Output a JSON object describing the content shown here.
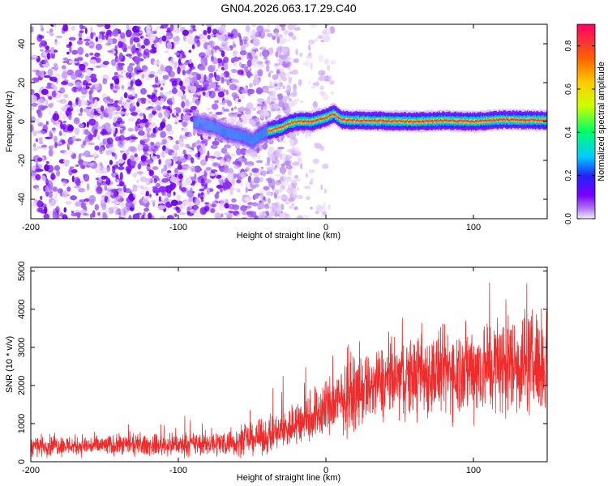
{
  "title": "GN04.2026.063.17.29.C40",
  "chart_data": [
    {
      "type": "heatmap",
      "name": "spectrogram",
      "xlabel": "Height of straight line (km)",
      "ylabel": "Frequency (Hz)",
      "xlim": [
        -200,
        150
      ],
      "ylim": [
        -50,
        50
      ],
      "x_ticks": [
        -200,
        -100,
        0,
        100
      ],
      "y_ticks": [
        -40,
        -20,
        0,
        20,
        40
      ],
      "colorbar": {
        "label": "Normalized spectral amplitude",
        "range": [
          0,
          0.9
        ],
        "ticks": [
          0.0,
          0.2,
          0.4,
          0.6,
          0.8
        ],
        "tick_labels": [
          "0.0",
          "0.2",
          "0.4",
          "0.6",
          "0.8"
        ],
        "colors": [
          "#f4ecfa",
          "#b07cf0",
          "#7a00ff",
          "#2222ff",
          "#00ccff",
          "#00ff66",
          "#ccff00",
          "#ffcc00",
          "#ff6600",
          "#ff0066"
        ]
      },
      "signal_track": {
        "x": [
          -90,
          -75,
          -70,
          -65,
          -60,
          -55,
          -50,
          -45,
          -40,
          -35,
          -30,
          -25,
          -20,
          -15,
          -10,
          -5,
          0,
          5,
          10,
          20,
          40,
          60,
          80,
          100,
          120,
          150
        ],
        "frequency": [
          0,
          -3,
          -5,
          -6,
          -7,
          -8,
          -10,
          -7,
          -5,
          -4,
          -3,
          -1,
          0,
          0,
          0,
          1,
          2,
          4,
          1,
          0.5,
          0.3,
          0,
          0.5,
          0,
          1,
          0.5
        ]
      },
      "noise_region_x": [
        -200,
        -20
      ]
    },
    {
      "type": "line",
      "name": "snr",
      "xlabel": "Height of straight line (km)",
      "ylabel": "SNR (10 * v/v)",
      "xlim": [
        -200,
        150
      ],
      "ylim": [
        0,
        5100
      ],
      "x_ticks": [
        -200,
        -100,
        0,
        100
      ],
      "y_ticks": [
        0,
        1000,
        2000,
        3000,
        4000,
        5000
      ],
      "color": "#ef2b2b",
      "envelope": {
        "x": [
          -200,
          -180,
          -160,
          -140,
          -120,
          -100,
          -80,
          -60,
          -50,
          -40,
          -30,
          -20,
          -10,
          0,
          10,
          20,
          30,
          40,
          50,
          60,
          70,
          80,
          90,
          100,
          110,
          120,
          130,
          140,
          150
        ],
        "mean": [
          420,
          430,
          420,
          430,
          430,
          440,
          470,
          520,
          600,
          650,
          800,
          1000,
          1200,
          1400,
          1600,
          1800,
          1950,
          2100,
          2200,
          2250,
          2300,
          2350,
          2400,
          2450,
          2500,
          2550,
          2600,
          2600,
          2600
        ],
        "spread": [
          300,
          300,
          300,
          300,
          300,
          320,
          350,
          400,
          450,
          500,
          600,
          700,
          800,
          900,
          950,
          1000,
          1050,
          1100,
          1150,
          1200,
          1250,
          1300,
          1350,
          1400,
          1450,
          1500,
          1500,
          1500,
          1500
        ]
      },
      "samples": 2400
    }
  ]
}
